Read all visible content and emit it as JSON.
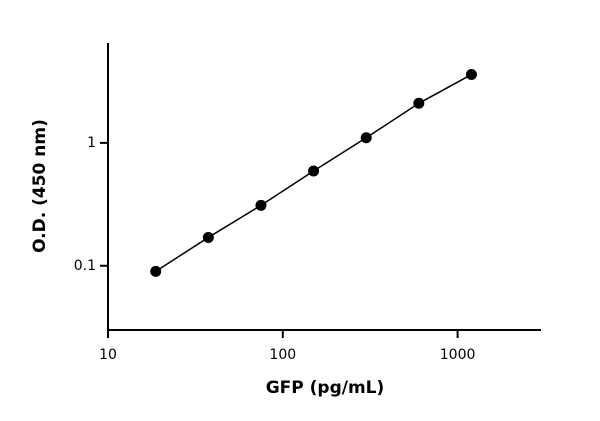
{
  "chart_data": {
    "type": "scatter",
    "x_label": "GFP (pg/mL)",
    "y_label": "O.D. (450 nm)",
    "x": [
      18.75,
      37.5,
      75,
      150,
      300,
      600,
      1200
    ],
    "values": [
      0.09,
      0.17,
      0.31,
      0.59,
      1.1,
      2.1,
      3.6
    ],
    "color": "#000000",
    "connect": true,
    "xscale": "log",
    "yscale": "log",
    "xlim": [
      10,
      3000
    ],
    "ylim": [
      0.03,
      6.5
    ],
    "xticks": [
      10,
      100,
      1000
    ],
    "yticks": [
      0.1,
      1
    ],
    "grid": false
  }
}
